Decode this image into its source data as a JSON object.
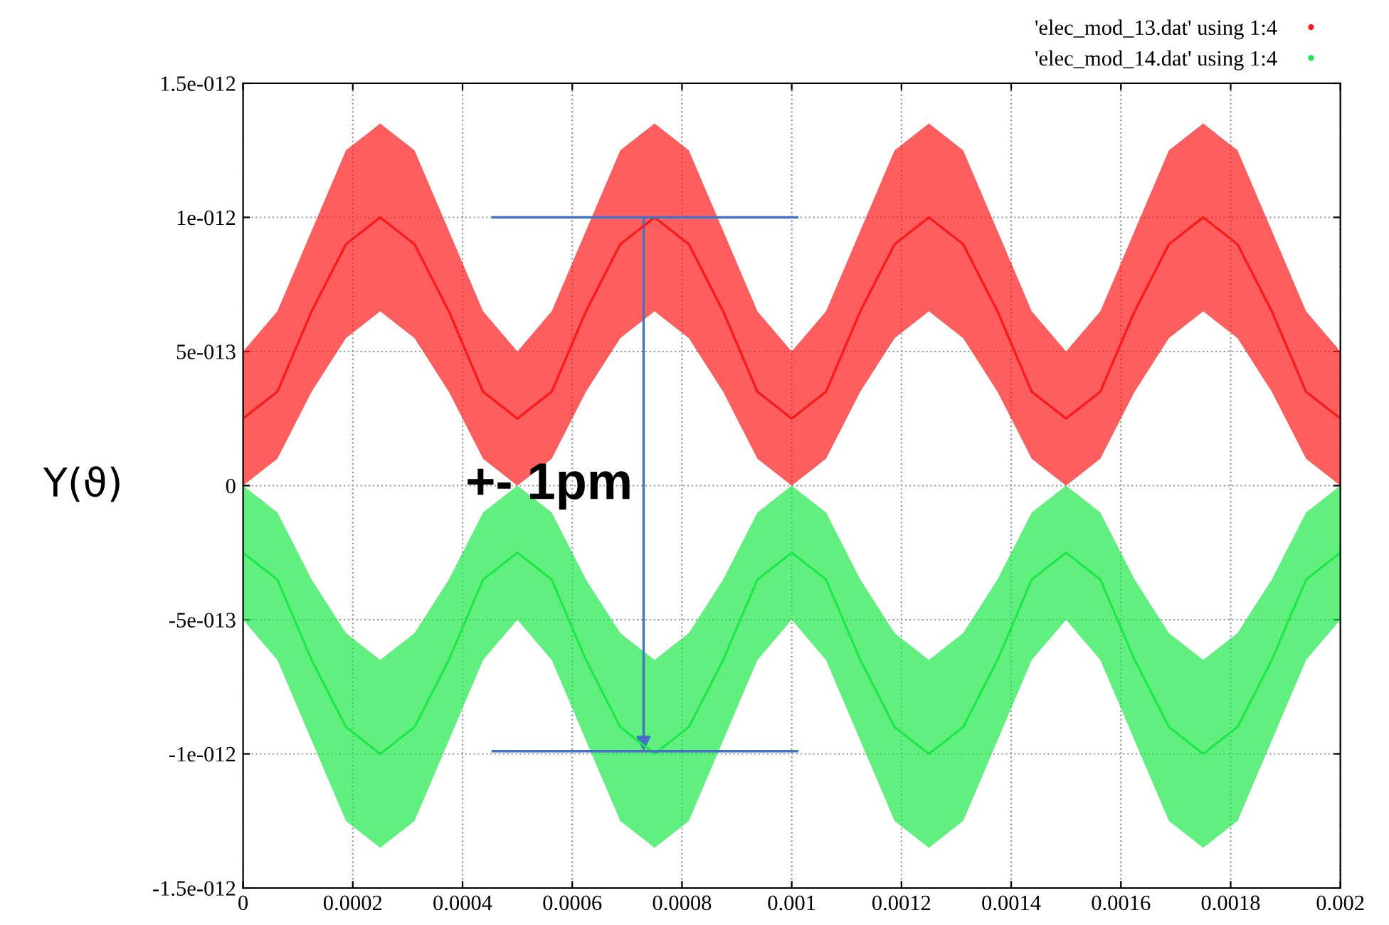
{
  "chart_data": {
    "type": "line",
    "x": [
      0,
      6.25e-05,
      0.000125,
      0.0001875,
      0.00025,
      0.0003125,
      0.000375,
      0.0004375,
      0.0005,
      0.0005625,
      0.000625,
      0.0006875,
      0.00075,
      0.0008125,
      0.000875,
      0.0009375,
      0.001,
      0.0010625,
      0.001125,
      0.0011875,
      0.00125,
      0.0013125,
      0.001375,
      0.0014375,
      0.0015,
      0.0015625,
      0.001625,
      0.0016875,
      0.00175,
      0.0018125,
      0.001875,
      0.0019375,
      0.002
    ],
    "series": [
      {
        "name": "'elec_mod_13.dat' using 1:4",
        "color": "#ff1a1a",
        "values": [
          2.5e-13,
          3.5e-13,
          6.5e-13,
          9e-13,
          1e-12,
          9e-13,
          6.5e-13,
          3.5e-13,
          2.5e-13,
          3.5e-13,
          6.5e-13,
          9e-13,
          1e-12,
          9e-13,
          6.5e-13,
          3.5e-13,
          2.5e-13,
          3.5e-13,
          6.5e-13,
          9e-13,
          1e-12,
          9e-13,
          6.5e-13,
          3.5e-13,
          2.5e-13,
          3.5e-13,
          6.5e-13,
          9e-13,
          1e-12,
          9e-13,
          6.5e-13,
          3.5e-13,
          2.5e-13
        ],
        "upper": [
          5e-13,
          6.5e-13,
          9.5e-13,
          1.25e-12,
          1.35e-12,
          1.25e-12,
          9.5e-13,
          6.5e-13,
          5e-13,
          6.5e-13,
          9.5e-13,
          1.25e-12,
          1.35e-12,
          1.25e-12,
          9.5e-13,
          6.5e-13,
          5e-13,
          6.5e-13,
          9.5e-13,
          1.25e-12,
          1.35e-12,
          1.25e-12,
          9.5e-13,
          6.5e-13,
          5e-13,
          6.5e-13,
          9.5e-13,
          1.25e-12,
          1.35e-12,
          1.25e-12,
          9.5e-13,
          6.5e-13,
          5e-13
        ],
        "lower": [
          0,
          1e-13,
          3.5e-13,
          5.5e-13,
          6.5e-13,
          5.5e-13,
          3.5e-13,
          1e-13,
          0,
          1e-13,
          3.5e-13,
          5.5e-13,
          6.5e-13,
          5.5e-13,
          3.5e-13,
          1e-13,
          0,
          1e-13,
          3.5e-13,
          5.5e-13,
          6.5e-13,
          5.5e-13,
          3.5e-13,
          1e-13,
          0,
          1e-13,
          3.5e-13,
          5.5e-13,
          6.5e-13,
          5.5e-13,
          3.5e-13,
          1e-13,
          0
        ]
      },
      {
        "name": "'elec_mod_14.dat' using 1:4",
        "color": "#1ee84a",
        "values": [
          -2.5e-13,
          -3.5e-13,
          -6.5e-13,
          -9e-13,
          -1e-12,
          -9e-13,
          -6.5e-13,
          -3.5e-13,
          -2.5e-13,
          -3.5e-13,
          -6.5e-13,
          -9e-13,
          -1e-12,
          -9e-13,
          -6.5e-13,
          -3.5e-13,
          -2.5e-13,
          -3.5e-13,
          -6.5e-13,
          -9e-13,
          -1e-12,
          -9e-13,
          -6.5e-13,
          -3.5e-13,
          -2.5e-13,
          -3.5e-13,
          -6.5e-13,
          -9e-13,
          -1e-12,
          -9e-13,
          -6.5e-13,
          -3.5e-13,
          -2.5e-13
        ],
        "lower": [
          -5e-13,
          -6.5e-13,
          -9.5e-13,
          -1.25e-12,
          -1.35e-12,
          -1.25e-12,
          -9.5e-13,
          -6.5e-13,
          -5e-13,
          -6.5e-13,
          -9.5e-13,
          -1.25e-12,
          -1.35e-12,
          -1.25e-12,
          -9.5e-13,
          -6.5e-13,
          -5e-13,
          -6.5e-13,
          -9.5e-13,
          -1.25e-12,
          -1.35e-12,
          -1.25e-12,
          -9.5e-13,
          -6.5e-13,
          -5e-13,
          -6.5e-13,
          -9.5e-13,
          -1.25e-12,
          -1.35e-12,
          -1.25e-12,
          -9.5e-13,
          -6.5e-13,
          -5e-13
        ],
        "upper": [
          0,
          -1e-13,
          -3.5e-13,
          -5.5e-13,
          -6.5e-13,
          -5.5e-13,
          -3.5e-13,
          -1e-13,
          0,
          -1e-13,
          -3.5e-13,
          -5.5e-13,
          -6.5e-13,
          -5.5e-13,
          -3.5e-13,
          -1e-13,
          0,
          -1e-13,
          -3.5e-13,
          -5.5e-13,
          -6.5e-13,
          -5.5e-13,
          -3.5e-13,
          -1e-13,
          0,
          -1e-13,
          -3.5e-13,
          -5.5e-13,
          -6.5e-13,
          -5.5e-13,
          -3.5e-13,
          -1e-13,
          0
        ]
      }
    ],
    "ylabel": "Y(ϑ)",
    "annotations": [
      "+- 1pm"
    ],
    "xlim": [
      0,
      0.002
    ],
    "xticks": [
      0,
      0.0002,
      0.0004,
      0.0006,
      0.0008,
      0.001,
      0.0012,
      0.0014,
      0.0016,
      0.0018,
      0.002
    ],
    "ylim": [
      -1.5e-12,
      1.5e-12
    ],
    "yticks": [
      {
        "value": -1.5e-12,
        "label": "-1.5e-012"
      },
      {
        "value": -1e-12,
        "label": "-1e-012"
      },
      {
        "value": -5e-13,
        "label": "-5e-013"
      },
      {
        "value": 0,
        "label": "0"
      },
      {
        "value": 5e-13,
        "label": "5e-013"
      },
      {
        "value": 1e-12,
        "label": "1e-012"
      },
      {
        "value": 1.5e-12,
        "label": "1.5e-012"
      }
    ],
    "grid": true,
    "legend": "top right"
  }
}
